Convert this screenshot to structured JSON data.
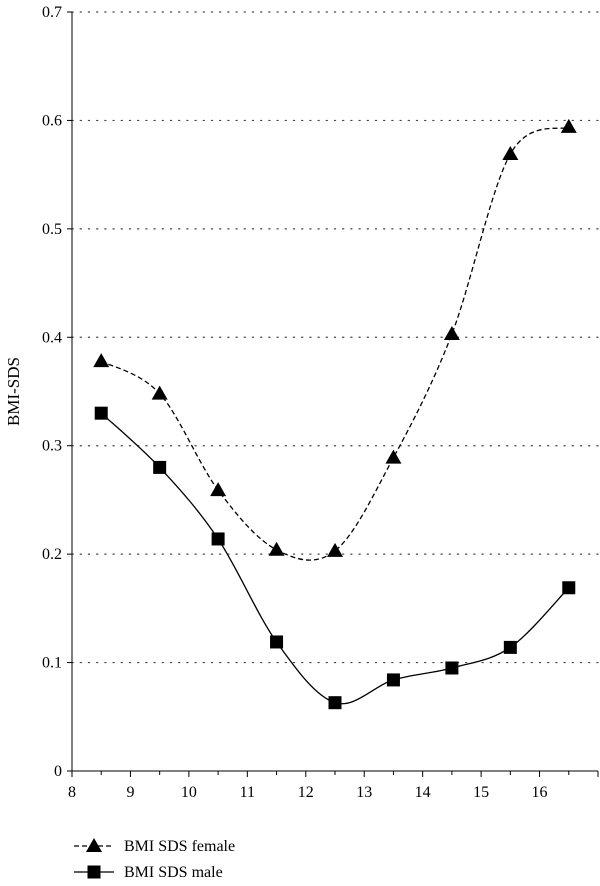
{
  "chart_data": {
    "type": "line",
    "title": "",
    "xlabel": "",
    "ylabel": "BMI-SDS",
    "xlim": [
      8,
      17
    ],
    "ylim": [
      0,
      0.7
    ],
    "x_ticks": [
      "8",
      "9",
      "10",
      "11",
      "12",
      "13",
      "14",
      "15",
      "16"
    ],
    "y_ticks": [
      "0",
      "0.1",
      "0.2",
      "0.3",
      "0.4",
      "0.5",
      "0.6",
      "0.7"
    ],
    "grid": "horizontal dotted",
    "legend": "bottom-left",
    "x": [
      8.5,
      9.5,
      10.5,
      11.5,
      12.5,
      13.5,
      14.5,
      15.5,
      16.5
    ],
    "series": [
      {
        "name": "BMI SDS female",
        "marker": "triangle",
        "line": "dashed",
        "color": "#000000",
        "values": [
          0.378,
          0.348,
          0.259,
          0.204,
          0.203,
          0.289,
          0.403,
          0.569,
          0.594
        ]
      },
      {
        "name": "BMI SDS male",
        "marker": "square",
        "line": "solid",
        "color": "#000000",
        "values": [
          0.33,
          0.28,
          0.214,
          0.119,
          0.063,
          0.084,
          0.095,
          0.114,
          0.169
        ]
      }
    ]
  }
}
